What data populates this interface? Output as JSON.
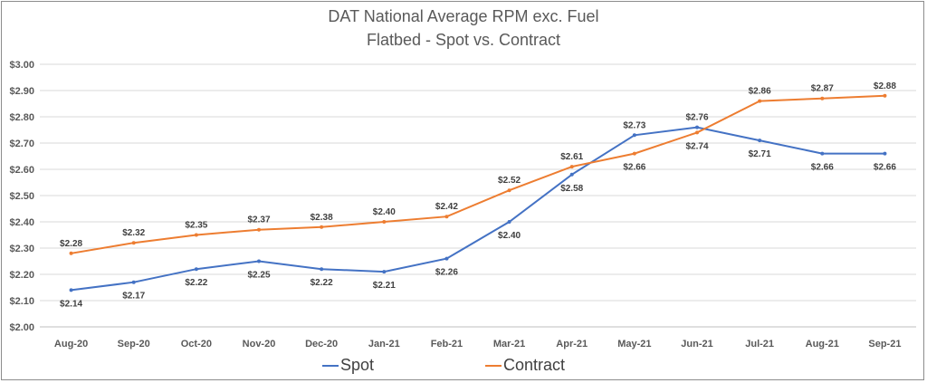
{
  "chart_data": {
    "type": "line",
    "title": "DAT National Average RPM exc. Fuel",
    "subtitle": "Flatbed - Spot vs. Contract",
    "categories": [
      "Aug-20",
      "Sep-20",
      "Oct-20",
      "Nov-20",
      "Dec-20",
      "Jan-21",
      "Feb-21",
      "Mar-21",
      "Apr-21",
      "May-21",
      "Jun-21",
      "Jul-21",
      "Aug-21",
      "Sep-21"
    ],
    "yticks": [
      "$2.00",
      "$2.10",
      "$2.20",
      "$2.30",
      "$2.40",
      "$2.50",
      "$2.60",
      "$2.70",
      "$2.80",
      "$2.90",
      "$3.00"
    ],
    "ylim": [
      2.0,
      3.0
    ],
    "grid": true,
    "legend_position": "bottom",
    "series": [
      {
        "name": "Spot",
        "color": "#4472c4",
        "values": [
          2.14,
          2.17,
          2.22,
          2.25,
          2.22,
          2.21,
          2.26,
          2.4,
          2.58,
          2.73,
          2.76,
          2.71,
          2.66,
          2.66
        ],
        "labels": [
          "$2.14",
          "$2.17",
          "$2.22",
          "$2.25",
          "$2.22",
          "$2.21",
          "$2.26",
          "$2.40",
          "$2.58",
          "$2.73",
          "$2.76",
          "$2.71",
          "$2.66",
          "$2.66"
        ]
      },
      {
        "name": "Contract",
        "color": "#ed7d31",
        "values": [
          2.28,
          2.32,
          2.35,
          2.37,
          2.38,
          2.4,
          2.42,
          2.52,
          2.61,
          2.66,
          2.74,
          2.86,
          2.87,
          2.88
        ],
        "labels": [
          "$2.28",
          "$2.32",
          "$2.35",
          "$2.37",
          "$2.38",
          "$2.40",
          "$2.42",
          "$2.52",
          "$2.61",
          "$2.66",
          "$2.74",
          "$2.86",
          "$2.87",
          "$2.88"
        ]
      }
    ]
  }
}
